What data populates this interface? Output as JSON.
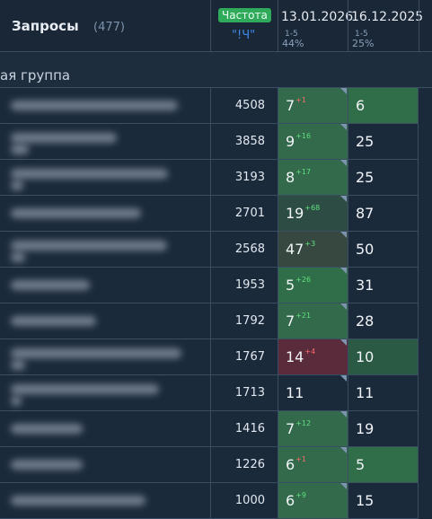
{
  "header": {
    "title": "Запросы",
    "count": "(477)",
    "freq_badge": "Частота",
    "freq_operator": "\"!Ч\"",
    "dates": [
      {
        "date": "13.01.2026",
        "range": "1-5",
        "pct": "44%"
      },
      {
        "date": "16.12.2025",
        "range": "1-5",
        "pct": "25%"
      }
    ]
  },
  "group": {
    "label": "ая группа"
  },
  "rows": [
    {
      "freq": "4508",
      "pos1": "7",
      "delta": "1",
      "dir": "down",
      "pos2": "6",
      "c1": "#336a4b",
      "c2": "#2f6e49"
    },
    {
      "freq": "3858",
      "pos1": "9",
      "delta": "16",
      "dir": "up",
      "pos2": "25",
      "c1": "#336a4b",
      "c2": "#1b2a3b"
    },
    {
      "freq": "3193",
      "pos1": "8",
      "delta": "17",
      "dir": "up",
      "pos2": "25",
      "c1": "#336a4b",
      "c2": "#1b2a3b"
    },
    {
      "freq": "2701",
      "pos1": "19",
      "delta": "68",
      "dir": "up",
      "pos2": "87",
      "c1": "#2d4c43",
      "c2": "#1b2a3b"
    },
    {
      "freq": "2568",
      "pos1": "47",
      "delta": "3",
      "dir": "up",
      "pos2": "50",
      "c1": "#36483f",
      "c2": "#1b2a3b"
    },
    {
      "freq": "1953",
      "pos1": "5",
      "delta": "26",
      "dir": "up",
      "pos2": "31",
      "c1": "#2f6e49",
      "c2": "#1b2a3b"
    },
    {
      "freq": "1792",
      "pos1": "7",
      "delta": "21",
      "dir": "up",
      "pos2": "28",
      "c1": "#336a4b",
      "c2": "#1b2a3b"
    },
    {
      "freq": "1767",
      "pos1": "14",
      "delta": "4",
      "dir": "down",
      "pos2": "10",
      "c1": "#5a2b3b",
      "c2": "#2a5a43"
    },
    {
      "freq": "1713",
      "pos1": "11",
      "delta": "",
      "dir": "",
      "pos2": "11",
      "c1": "#1b2a3b",
      "c2": "#1b2a3b"
    },
    {
      "freq": "1416",
      "pos1": "7",
      "delta": "12",
      "dir": "up",
      "pos2": "19",
      "c1": "#336a4b",
      "c2": "#1b2a3b"
    },
    {
      "freq": "1226",
      "pos1": "6",
      "delta": "1",
      "dir": "down",
      "pos2": "5",
      "c1": "#336a4b",
      "c2": "#2f6e49"
    },
    {
      "freq": "1000",
      "pos1": "6",
      "delta": "9",
      "dir": "up",
      "pos2": "15",
      "c1": "#336a4b",
      "c2": "#1b2a3b"
    }
  ]
}
